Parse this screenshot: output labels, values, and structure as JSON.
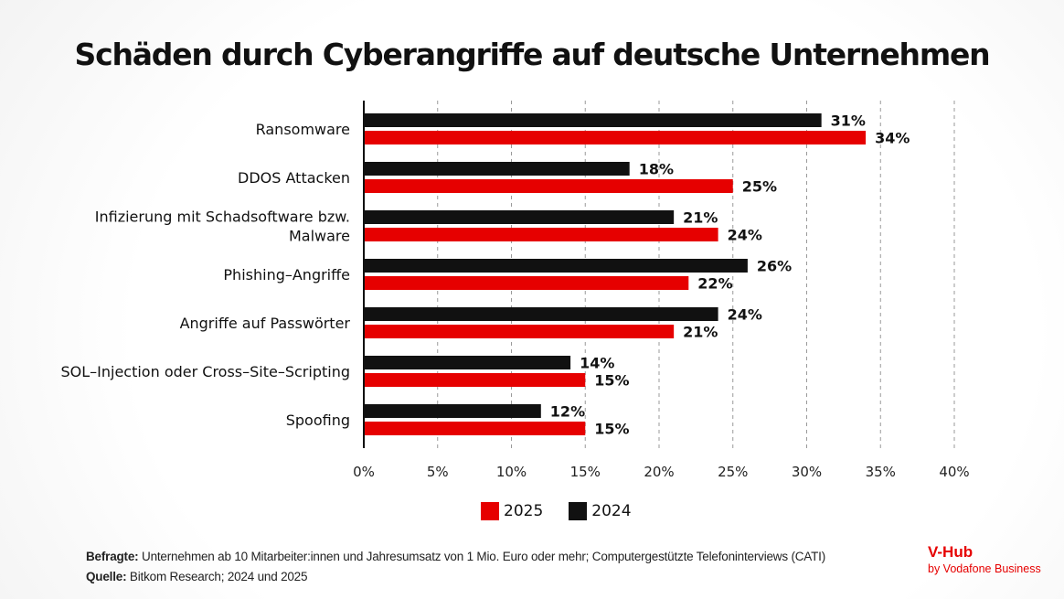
{
  "chart_data": {
    "type": "bar",
    "orientation": "horizontal",
    "title": "Schäden durch Cyberangriffe auf deutsche Unternehmen",
    "xlabel": "",
    "ylabel": "",
    "xlim": [
      0,
      40
    ],
    "x_ticks": [
      0,
      5,
      10,
      15,
      20,
      25,
      30,
      35,
      40
    ],
    "x_tick_labels": [
      "0%",
      "5%",
      "10%",
      "15%",
      "20%",
      "25%",
      "30%",
      "35%",
      "40%"
    ],
    "grid": "vertical dashed",
    "legend_position": "bottom-center",
    "categories": [
      [
        "Ransomware"
      ],
      [
        "DDOS Attacken"
      ],
      [
        "Infizierung mit Schadsoftware bzw.",
        "Malware"
      ],
      [
        "Phishing–Angriffe"
      ],
      [
        "Angriffe auf Passwörter"
      ],
      [
        "SOL–Injection oder Cross–Site–Scripting"
      ],
      [
        "Spoofing"
      ]
    ],
    "series": [
      {
        "name": "2024",
        "color": "#111111",
        "values": [
          31,
          18,
          21,
          26,
          24,
          14,
          12
        ],
        "labels": [
          "31%",
          "18%",
          "21%",
          "26%",
          "24%",
          "14%",
          "12%"
        ]
      },
      {
        "name": "2025",
        "color": "#e60000",
        "values": [
          34,
          25,
          24,
          22,
          21,
          15,
          15
        ],
        "labels": [
          "34%",
          "25%",
          "24%",
          "22%",
          "21%",
          "15%",
          "15%"
        ]
      }
    ]
  },
  "legend": [
    {
      "label": "2025",
      "color": "#e60000"
    },
    {
      "label": "2024",
      "color": "#111111"
    }
  ],
  "footnote": {
    "respondents_label": "Befragte:",
    "respondents_text": " Unternehmen ab 10 Mitarbeiter:innen und Jahresumsatz von 1 Mio. Euro oder mehr; Computergestützte Telefoninterviews (CATI)",
    "source_label": "Quelle:",
    "source_text": " Bitkom Research; 2024 und 2025"
  },
  "brand": {
    "name": "V-Hub",
    "sub": "by Vodafone Business",
    "color": "#e60000"
  }
}
